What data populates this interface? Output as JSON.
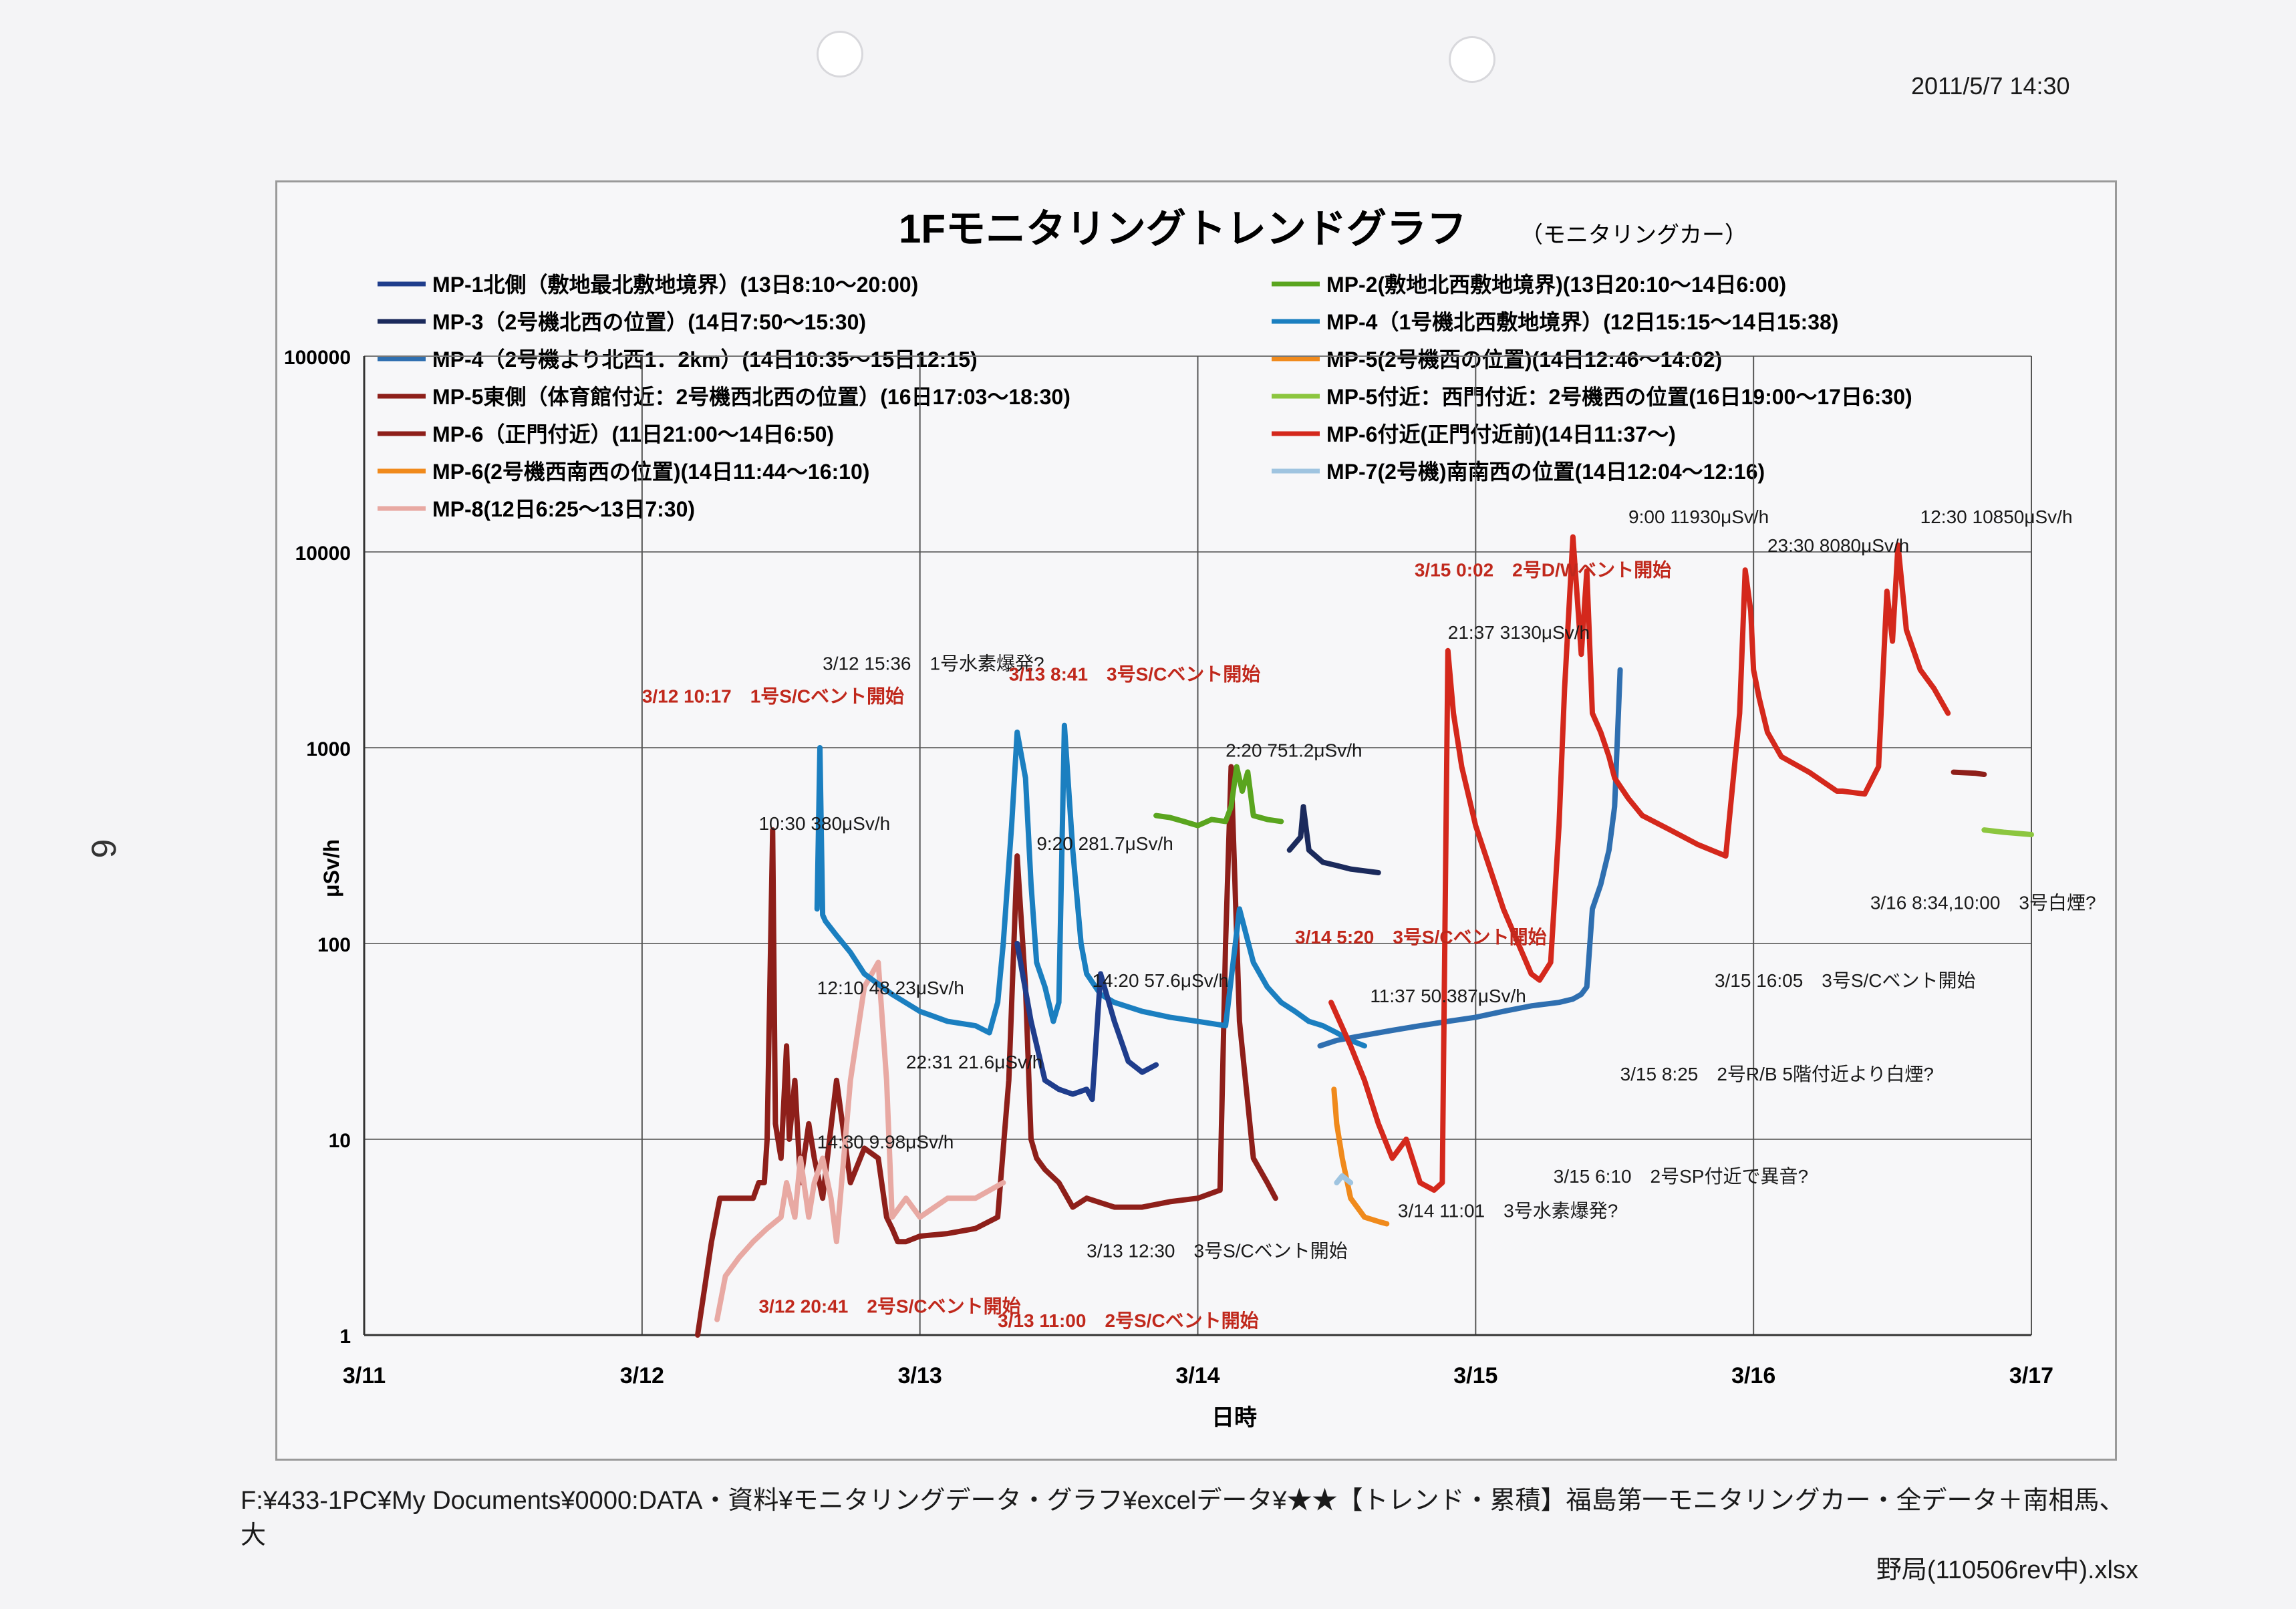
{
  "header": {
    "datetime": "2011/5/7 14:30",
    "page_mark": "6"
  },
  "footer": {
    "line1": "F:¥433-1PC¥My Documents¥0000:DATA・資料¥モニタリングデータ・グラフ¥excelデータ¥★★【トレンド・累積】福島第一モニタリングカー・全データ＋南相馬、大",
    "line2": "野局(110506rev中).xlsx"
  },
  "colors": {
    "navy": "#1f3d8c",
    "dark_navy": "#1b2a5c",
    "steel_blue": "#2f6fb0",
    "blue": "#1b7fc0",
    "maroon": "#8e1f1a",
    "red": "#d4281c",
    "orange": "#f08a1c",
    "green": "#5aa51f",
    "light_green": "#8cc63f",
    "pink": "#e8a9a3",
    "light_blue": "#9fc4e0",
    "annotation_red": "#c0281c",
    "arrow": "#2a6fb0"
  },
  "chart_data": {
    "type": "line",
    "title": "1Fモニタリングトレンドグラフ",
    "subtitle": "（モニタリングカー）",
    "xlabel": "日時",
    "ylabel": "μSv/h",
    "y_scale": "log",
    "ylim": [
      1,
      100000
    ],
    "y_ticks": [
      "1",
      "10",
      "100",
      "1000",
      "10000",
      "100000"
    ],
    "x_ticks": [
      "3/11",
      "3/12",
      "3/13",
      "3/14",
      "3/15",
      "3/16",
      "3/17"
    ],
    "xlim_days": [
      11,
      17
    ],
    "grid": true,
    "legend_position": "top",
    "legend": [
      {
        "label": "MP-1北側（敷地最北敷地境界）(13日8:10～20:00)",
        "color": "#1f3d8c"
      },
      {
        "label": "MP-2(敷地北西敷地境界)(13日20:10～14日6:00)",
        "color": "#5aa51f"
      },
      {
        "label": "MP-3（2号機北西の位置）(14日7:50～15:30)",
        "color": "#1b2a5c"
      },
      {
        "label": "MP-4（1号機北西敷地境界）(12日15:15～14日15:38)",
        "color": "#1b7fc0"
      },
      {
        "label": "MP-4（2号機より北西1．2km）(14日10:35～15日12:15)",
        "color": "#2f6fb0"
      },
      {
        "label": "MP-5(2号機西の位置)(14日12:46～14:02)",
        "color": "#f08a1c"
      },
      {
        "label": "MP-5東側（体育館付近：2号機西北西の位置）(16日17:03～18:30)",
        "color": "#8e1f1a"
      },
      {
        "label": "MP-5付近：西門付近：2号機西の位置(16日19:00～17日6:30)",
        "color": "#8cc63f"
      },
      {
        "label": "MP-6（正門付近）(11日21:00～14日6:50)",
        "color": "#8e1f1a"
      },
      {
        "label": "MP-6付近(正門付近前)(14日11:37～)",
        "color": "#d4281c"
      },
      {
        "label": "MP-6(2号機西南西の位置)(14日11:44～16:10)",
        "color": "#f08a1c"
      },
      {
        "label": "MP-7(2号機)南南西の位置(14日12:04～12:16)",
        "color": "#9fc4e0"
      },
      {
        "label": "MP-8(12日6:25～13日7:30)",
        "color": "#e8a9a3"
      }
    ],
    "series": [
      {
        "name": "MP-6（正門付近）(11日21:00～14日6:50)",
        "color": "#8e1f1a",
        "x": [
          12.2,
          12.25,
          12.28,
          12.3,
          12.35,
          12.4,
          12.42,
          12.44,
          12.45,
          12.46,
          12.47,
          12.48,
          12.5,
          12.52,
          12.53,
          12.55,
          12.57,
          12.6,
          12.62,
          12.65,
          12.7,
          12.75,
          12.8,
          12.85,
          12.88,
          12.9,
          12.92,
          12.95,
          13.0,
          13.1,
          13.2,
          13.28,
          13.32,
          13.35,
          13.38,
          13.4,
          13.42,
          13.45,
          13.5,
          13.55,
          13.6,
          13.7,
          13.8,
          13.9,
          14.0,
          14.08,
          14.1,
          14.12,
          14.15,
          14.2,
          14.25,
          14.28
        ],
        "y": [
          1,
          3,
          5,
          5,
          5,
          5,
          6,
          6,
          10,
          60,
          380,
          12,
          8,
          30,
          10,
          20,
          6,
          12,
          8,
          5,
          20,
          6,
          9,
          8,
          4,
          3.5,
          3,
          3,
          3.2,
          3.3,
          3.5,
          4,
          20,
          280,
          60,
          10,
          8,
          7,
          6,
          4.5,
          5,
          4.5,
          4.5,
          4.8,
          5,
          5.5,
          100,
          800,
          40,
          8,
          6,
          5
        ]
      },
      {
        "name": "MP-8(12日6:25～13日7:30)",
        "color": "#e8a9a3",
        "x": [
          12.27,
          12.3,
          12.35,
          12.4,
          12.45,
          12.5,
          12.52,
          12.55,
          12.57,
          12.6,
          12.62,
          12.65,
          12.68,
          12.7,
          12.75,
          12.8,
          12.85,
          12.88,
          12.9,
          12.95,
          13.0,
          13.1,
          13.2,
          13.3
        ],
        "y": [
          1.2,
          2,
          2.5,
          3,
          3.5,
          4,
          6,
          4,
          8,
          4,
          6,
          8,
          5,
          3,
          20,
          60,
          80,
          20,
          4,
          5,
          4,
          5,
          5,
          6
        ]
      },
      {
        "name": "MP-4（1号機北西敷地境界）(12日15:15～14日15:38)",
        "color": "#1b7fc0",
        "x": [
          12.63,
          12.64,
          12.65,
          12.66,
          12.7,
          12.75,
          12.8,
          12.9,
          13.0,
          13.1,
          13.2,
          13.25,
          13.28,
          13.3,
          13.33,
          13.35,
          13.38,
          13.4,
          13.42,
          13.45,
          13.48,
          13.5,
          13.52,
          13.55,
          13.58,
          13.6,
          13.65,
          13.7,
          13.8,
          13.9,
          14.0,
          14.1,
          14.15,
          14.2,
          14.25,
          14.3,
          14.35,
          14.4,
          14.45,
          14.5,
          14.55,
          14.6
        ],
        "y": [
          150,
          1000,
          140,
          130,
          110,
          90,
          70,
          55,
          45,
          40,
          38,
          35,
          50,
          100,
          400,
          1200,
          700,
          200,
          80,
          60,
          40,
          50,
          1300,
          300,
          100,
          70,
          55,
          50,
          45,
          42,
          40,
          38,
          150,
          80,
          60,
          50,
          45,
          40,
          38,
          35,
          32,
          30
        ]
      },
      {
        "name": "MP-4（2号機より北西1．2km）(14日10:35～15日12:15)",
        "color": "#2f6fb0",
        "x": [
          14.44,
          14.5,
          14.6,
          14.7,
          14.8,
          14.9,
          15.0,
          15.1,
          15.2,
          15.3,
          15.35,
          15.38,
          15.4,
          15.42,
          15.45,
          15.48,
          15.5,
          15.52
        ],
        "y": [
          30,
          32,
          34,
          36,
          38,
          40,
          42,
          45,
          48,
          50,
          52,
          55,
          60,
          150,
          200,
          300,
          500,
          2500
        ]
      },
      {
        "name": "MP-1北側（敷地最北敷地境界）(13日8:10～20:00)",
        "color": "#1f3d8c",
        "x": [
          13.35,
          13.4,
          13.45,
          13.5,
          13.55,
          13.6,
          13.62,
          13.65,
          13.7,
          13.75,
          13.8,
          13.85
        ],
        "y": [
          100,
          40,
          20,
          18,
          17,
          18,
          16,
          70,
          40,
          25,
          22,
          24
        ]
      },
      {
        "name": "MP-2(敷地北西敷地境界)(13日20:10～14日6:00)",
        "color": "#5aa51f",
        "x": [
          13.85,
          13.9,
          13.95,
          14.0,
          14.05,
          14.1,
          14.12,
          14.14,
          14.16,
          14.18,
          14.2,
          14.25,
          14.3
        ],
        "y": [
          450,
          440,
          420,
          400,
          430,
          420,
          500,
          800,
          600,
          751,
          450,
          430,
          420
        ]
      },
      {
        "name": "MP-3（2号機北西の位置）(14日7:50～15:30)",
        "color": "#1b2a5c",
        "x": [
          14.33,
          14.37,
          14.38,
          14.4,
          14.45,
          14.5,
          14.55,
          14.6,
          14.65
        ],
        "y": [
          300,
          350,
          500,
          300,
          260,
          250,
          240,
          235,
          230
        ]
      },
      {
        "name": "MP-6付近(正門付近前)(14日11:37～)",
        "color": "#d4281c",
        "x": [
          14.48,
          14.55,
          14.6,
          14.65,
          14.7,
          14.75,
          14.8,
          14.85,
          14.88,
          14.9,
          14.92,
          14.95,
          15.0,
          15.1,
          15.2,
          15.23,
          15.27,
          15.3,
          15.32,
          15.35,
          15.38,
          15.4,
          15.42,
          15.45,
          15.48,
          15.5,
          15.55,
          15.6,
          15.7,
          15.8,
          15.9,
          15.95,
          15.97,
          15.99,
          16.0,
          16.02,
          16.05,
          16.1,
          16.2,
          16.3,
          16.32,
          16.4,
          16.45,
          16.48,
          16.5,
          16.52,
          16.55,
          16.6,
          16.65,
          16.7
        ],
        "y": [
          50,
          30,
          20,
          12,
          8,
          10,
          6,
          5.5,
          6,
          3130,
          1500,
          800,
          400,
          150,
          70,
          65,
          80,
          400,
          2000,
          11930,
          3000,
          8000,
          1500,
          1200,
          900,
          700,
          550,
          450,
          380,
          320,
          280,
          1500,
          8080,
          5000,
          2500,
          1800,
          1200,
          900,
          750,
          600,
          600,
          580,
          800,
          6300,
          3500,
          10850,
          4000,
          2500,
          2000,
          1500
        ]
      },
      {
        "name": "MP-5(2号機西の位置)(14日12:46～14:02)",
        "color": "#f08a1c",
        "x": [
          14.49,
          14.5,
          14.52,
          14.55,
          14.6,
          14.65,
          14.68
        ],
        "y": [
          18,
          12,
          8,
          5,
          4,
          3.8,
          3.7
        ]
      },
      {
        "name": "MP-7(2号機)南南西の位置(14日12:04～12:16)",
        "color": "#9fc4e0",
        "x": [
          14.5,
          14.52,
          14.55
        ],
        "y": [
          6,
          6.5,
          6
        ]
      },
      {
        "name": "MP-5東側（体育館付近：2号機西北西の位置）(16日17:03～18:30)",
        "color": "#8e1f1a",
        "x": [
          16.72,
          16.8,
          16.83
        ],
        "y": [
          750,
          740,
          730
        ]
      },
      {
        "name": "MP-5付近：西門付近：2号機西の位置(16日19:00～17日6:30)",
        "color": "#8cc63f",
        "x": [
          16.83,
          16.9,
          17.0
        ],
        "y": [
          380,
          370,
          360
        ]
      }
    ],
    "annotations": [
      {
        "text": "3/12 10:17　1号S/Cベント開始",
        "red": true,
        "x": 12.0,
        "y": 1700
      },
      {
        "text": "10:30 380μSv/h",
        "red": false,
        "x": 12.42,
        "y": 380
      },
      {
        "text": "3/12 15:36　1号水素爆発?",
        "red": false,
        "x": 12.65,
        "y": 2500
      },
      {
        "text": "12:10 48.23μSv/h",
        "red": false,
        "x": 12.63,
        "y": 55
      },
      {
        "text": "14:30 9.98μSv/h",
        "red": false,
        "x": 12.63,
        "y": 9
      },
      {
        "text": "22:31 21.6μSv/h",
        "red": false,
        "x": 12.95,
        "y": 23
      },
      {
        "text": "3/12 20:41　2号S/Cベント開始",
        "red": true,
        "x": 12.42,
        "y": 1.3
      },
      {
        "text": "3/13 8:41　3号S/Cベント開始",
        "red": true,
        "x": 13.32,
        "y": 2200
      },
      {
        "text": "9:20 281.7μSv/h",
        "red": false,
        "x": 13.42,
        "y": 300
      },
      {
        "text": "14:20 57.6μSv/h",
        "red": false,
        "x": 13.62,
        "y": 60
      },
      {
        "text": "3/13 11:00　2号S/Cベント開始",
        "red": true,
        "x": 13.28,
        "y": 1.1
      },
      {
        "text": "3/13 12:30　3号S/Cベント開始",
        "red": false,
        "x": 13.6,
        "y": 2.5
      },
      {
        "text": "2:20 751.2μSv/h",
        "red": false,
        "x": 14.1,
        "y": 900
      },
      {
        "text": "3/14 5:20　3号S/Cベント開始",
        "red": true,
        "x": 14.35,
        "y": 100
      },
      {
        "text": "11:37 50.387μSv/h",
        "red": false,
        "x": 14.62,
        "y": 50
      },
      {
        "text": "3/14 11:01　3号水素爆発?",
        "red": false,
        "x": 14.72,
        "y": 4
      },
      {
        "text": "3/15 0:02　2号D/Wベント開始",
        "red": true,
        "x": 14.78,
        "y": 7500
      },
      {
        "text": "21:37 3130μSv/h",
        "red": false,
        "x": 14.9,
        "y": 3600
      },
      {
        "text": "9:00 11930μSv/h",
        "red": false,
        "x": 15.55,
        "y": 14000
      },
      {
        "text": "3/15 6:10　2号SP付近で異音?",
        "red": false,
        "x": 15.28,
        "y": 6
      },
      {
        "text": "3/15 8:25　2号R/B 5階付近より白煙?",
        "red": false,
        "x": 15.52,
        "y": 20
      },
      {
        "text": "3/15 16:05　3号S/Cベント開始",
        "red": false,
        "x": 15.86,
        "y": 60
      },
      {
        "text": "23:30 8080μSv/h",
        "red": false,
        "x": 16.05,
        "y": 10000
      },
      {
        "text": "12:30 10850μSv/h",
        "red": false,
        "x": 16.6,
        "y": 14000
      },
      {
        "text": "3/16 8:34,10:00　3号白煙?",
        "red": false,
        "x": 16.42,
        "y": 150
      }
    ]
  }
}
